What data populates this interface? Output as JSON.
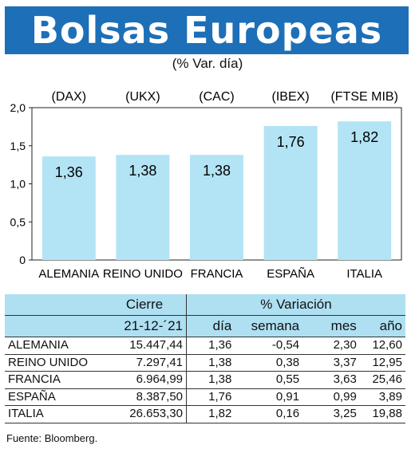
{
  "title": "Bolsas Europeas",
  "subtitle": "(% Var. día)",
  "chart_data": {
    "type": "bar",
    "index_labels": [
      "(DAX)",
      "(UKX)",
      "(CAC)",
      "(IBEX)",
      "(FTSE MIB)"
    ],
    "categories": [
      "ALEMANIA",
      "REINO UNIDO",
      "FRANCIA",
      "ESPAÑA",
      "ITALIA"
    ],
    "values": [
      1.36,
      1.38,
      1.38,
      1.76,
      1.82
    ],
    "value_labels": [
      "1,36",
      "1,38",
      "1,38",
      "1,76",
      "1,82"
    ],
    "ylim": [
      0,
      2.0
    ],
    "yticks": [
      0,
      0.5,
      1.0,
      1.5,
      2.0
    ],
    "ytick_labels": [
      "0",
      "0,5",
      "1,0",
      "1,5",
      "2,0"
    ],
    "bar_color": "#b3e4f5",
    "grid": false
  },
  "table": {
    "header_cierre": "Cierre",
    "header_variacion": "% Variación",
    "date": "21-12-´21",
    "col_dia": "día",
    "col_semana": "semana",
    "col_mes": "mes",
    "col_anio": "año",
    "rows": [
      {
        "pais": "ALEMANIA",
        "cierre": "15.447,44",
        "dia": "1,36",
        "semana": "-0,54",
        "mes": "2,30",
        "anio": "12,60"
      },
      {
        "pais": "REINO UNIDO",
        "cierre": "7.297,41",
        "dia": "1,38",
        "semana": "0,38",
        "mes": "3,37",
        "anio": "12,95"
      },
      {
        "pais": "FRANCIA",
        "cierre": "6.964,99",
        "dia": "1,38",
        "semana": "0,55",
        "mes": "3,63",
        "anio": "25,46"
      },
      {
        "pais": "ESPAÑA",
        "cierre": "8.387,50",
        "dia": "1,76",
        "semana": "0,91",
        "mes": "0,99",
        "anio": "3,89"
      },
      {
        "pais": "ITALIA",
        "cierre": "26.653,30",
        "dia": "1,82",
        "semana": "0,16",
        "mes": "3,25",
        "anio": "19,88"
      }
    ]
  },
  "source": "Fuente: Bloomberg.",
  "colors": {
    "banner": "#1d6fb7",
    "header_fill": "#aee0f2"
  }
}
